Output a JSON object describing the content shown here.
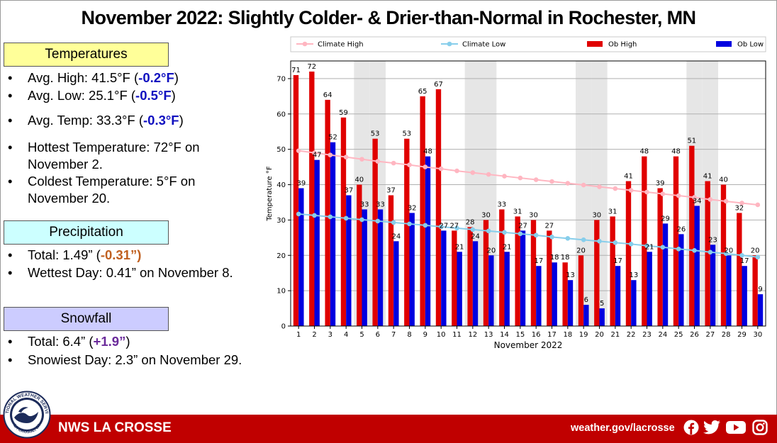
{
  "title": "November 2022: Slightly Colder- & Drier-than-Normal in Rochester, MN",
  "temperatures": {
    "heading": "Temperatures",
    "heading_bg": "#ffff99",
    "avg_high_label": "Avg. High:  41.5°F (",
    "avg_high_dep": "-0.2°F",
    "avg_low_label": "Avg. Low:  25.1°F (",
    "avg_low_dep": "-0.5°F",
    "avg_temp_label": "Avg. Temp:  33.3°F (",
    "avg_temp_dep": "-0.3°F",
    "close": ")",
    "hottest_line1": "Hottest Temperature: 72°F on",
    "hottest_line2": "November 2.",
    "coldest_line1": "Coldest Temperature: 5°F on",
    "coldest_line2": "November 20."
  },
  "precipitation": {
    "heading": "Precipitation",
    "heading_bg": "#ccffff",
    "total_label": "Total:  1.49” (",
    "total_dep": "-0.31”",
    "close": ")",
    "wettest": "Wettest Day: 0.41” on November 8."
  },
  "snowfall": {
    "heading": "Snowfall",
    "heading_bg": "#ccccff",
    "total_label": "Total:  6.4” (",
    "total_dep": "+1.9”",
    "close": ")",
    "snowiest": "Snowiest Day: 2.3” on November 29."
  },
  "bullet_char": "•",
  "footer": {
    "left": "NWS LA CROSSE",
    "right": "weather.gov/lacrosse",
    "logo_text_top": "NATIONAL WEATHER SERVICE",
    "logo_text_bottom": "LA CROSSE, WI",
    "icons": [
      "facebook-icon",
      "twitter-icon",
      "youtube-icon",
      "instagram-icon"
    ]
  },
  "colors": {
    "footer": "#c00000",
    "ob_high": "#e00000",
    "ob_low": "#0000e0",
    "climate_high": "#ffb6c1",
    "climate_low": "#87ceeb",
    "weekend_shade": "#e6e6e6"
  },
  "chart_data": {
    "type": "bar",
    "xlabel": "November 2022",
    "ylabel": "Temperature  °F",
    "ylim": [
      0,
      75
    ],
    "yticks": [
      0,
      10,
      20,
      30,
      40,
      50,
      60,
      70
    ],
    "grid": true,
    "legend_position": "top",
    "categories": [
      "1",
      "2",
      "3",
      "4",
      "5",
      "6",
      "7",
      "8",
      "9",
      "10",
      "11",
      "12",
      "13",
      "14",
      "15",
      "16",
      "17",
      "18",
      "19",
      "20",
      "21",
      "22",
      "23",
      "24",
      "25",
      "26",
      "27",
      "28",
      "29",
      "30"
    ],
    "shaded_days": [
      5,
      6,
      12,
      13,
      19,
      20,
      26,
      27
    ],
    "series": [
      {
        "name": "Ob High",
        "kind": "bar",
        "color": "#e00000",
        "values": [
          71,
          72,
          64,
          59,
          40,
          53,
          37,
          53,
          65,
          67,
          27,
          28,
          30,
          33,
          31,
          30,
          27,
          18,
          20,
          30,
          31,
          41,
          48,
          39,
          48,
          51,
          41,
          40,
          32,
          20
        ]
      },
      {
        "name": "Ob Low",
        "kind": "bar",
        "color": "#0000e0",
        "values": [
          39,
          47,
          52,
          37,
          33,
          33,
          24,
          32,
          48,
          27,
          21,
          24,
          20,
          21,
          27,
          17,
          18,
          13,
          6,
          5,
          17,
          13,
          21,
          29,
          26,
          34,
          23,
          20,
          17,
          9
        ]
      },
      {
        "name": "Climate High",
        "kind": "line",
        "color": "#ffb6c1",
        "values": [
          49.6,
          49.0,
          48.4,
          47.8,
          47.2,
          46.6,
          46.1,
          45.6,
          45.0,
          44.5,
          43.9,
          43.4,
          42.9,
          42.4,
          41.9,
          41.4,
          40.9,
          40.4,
          39.9,
          39.4,
          38.9,
          38.4,
          37.9,
          37.4,
          36.9,
          36.4,
          35.8,
          35.3,
          34.8,
          34.3
        ]
      },
      {
        "name": "Climate Low",
        "kind": "line",
        "color": "#87ceeb",
        "values": [
          31.7,
          31.3,
          30.9,
          30.5,
          30.1,
          29.7,
          29.3,
          28.9,
          28.5,
          28.1,
          27.7,
          27.3,
          26.9,
          26.5,
          26.1,
          25.7,
          25.2,
          24.8,
          24.4,
          24.0,
          23.6,
          23.2,
          22.7,
          22.3,
          21.8,
          21.4,
          20.9,
          20.5,
          20.0,
          19.5
        ]
      }
    ]
  }
}
